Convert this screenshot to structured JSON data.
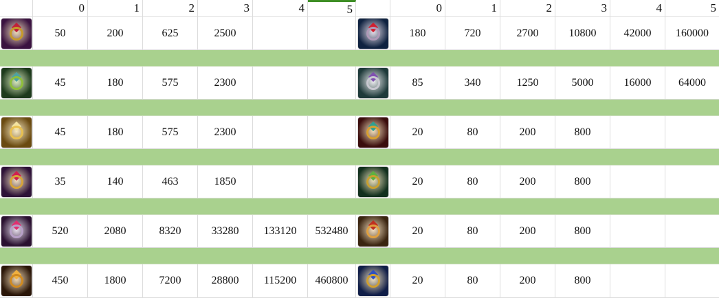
{
  "headers": [
    "0",
    "1",
    "2",
    "3",
    "4",
    "5"
  ],
  "selected_column": "5",
  "colors": {
    "band": "#a9d18e",
    "selected": "#3e8e25"
  },
  "left": [
    {
      "icon": "crimson-amulet-icon",
      "bg": "#3a1240",
      "ring": "#c79a2a",
      "gem": "#c0203a",
      "values": [
        "50",
        "200",
        "625",
        "2500",
        "",
        ""
      ]
    },
    {
      "icon": "scorpion-charm-icon",
      "bg": "#1d3a1c",
      "ring": "#8fbf3a",
      "gem": "#4fa3a0",
      "values": [
        "45",
        "180",
        "575",
        "2300",
        "",
        ""
      ]
    },
    {
      "icon": "winged-gold-charm-icon",
      "bg": "#6a4a10",
      "ring": "#e8c050",
      "gem": "#f3e3a0",
      "values": [
        "45",
        "180",
        "575",
        "2300",
        "",
        ""
      ]
    },
    {
      "icon": "purple-gold-frame-icon",
      "bg": "#2e1238",
      "ring": "#d6a43a",
      "gem": "#d02050",
      "values": [
        "35",
        "140",
        "463",
        "1850",
        "",
        ""
      ]
    },
    {
      "icon": "purple-chain-bracelet-icon",
      "bg": "#2a1030",
      "ring": "#b8a0c8",
      "gem": "#e03070",
      "values": [
        "520",
        "2080",
        "8320",
        "33280",
        "133120",
        "532480"
      ]
    },
    {
      "icon": "amber-orb-amulet-icon",
      "bg": "#2a1608",
      "ring": "#d08a20",
      "gem": "#f0b040",
      "values": [
        "450",
        "1800",
        "7200",
        "28800",
        "115200",
        "460800"
      ]
    }
  ],
  "right": [
    {
      "icon": "ruby-silver-ring-icon",
      "bg": "#0f2240",
      "ring": "#b09ab8",
      "gem": "#d02030",
      "values": [
        "180",
        "720",
        "2700",
        "10800",
        "42000",
        "160000"
      ]
    },
    {
      "icon": "silver-amethyst-ring-icon",
      "bg": "#1e3a3a",
      "ring": "#c8c8d0",
      "gem": "#8050b0",
      "values": [
        "85",
        "340",
        "1250",
        "5000",
        "16000",
        "64000"
      ]
    },
    {
      "icon": "gold-ruby-ring-icon",
      "bg": "#3a0c0c",
      "ring": "#d8a030",
      "gem": "#30a090",
      "values": [
        "20",
        "80",
        "200",
        "800",
        "",
        ""
      ]
    },
    {
      "icon": "gold-leaf-ring-icon",
      "bg": "#12301e",
      "ring": "#c8a030",
      "gem": "#60b040",
      "values": [
        "20",
        "80",
        "200",
        "800",
        "",
        ""
      ]
    },
    {
      "icon": "flower-ring-icon",
      "bg": "#3a2410",
      "ring": "#e0a040",
      "gem": "#c03020",
      "values": [
        "20",
        "80",
        "200",
        "800",
        "",
        ""
      ]
    },
    {
      "icon": "sapphire-gold-ring-icon",
      "bg": "#101e48",
      "ring": "#d0a030",
      "gem": "#3050c0",
      "values": [
        "20",
        "80",
        "200",
        "800",
        "",
        ""
      ]
    }
  ]
}
